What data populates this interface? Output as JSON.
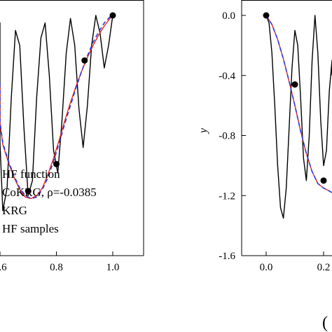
{
  "chart_data": [
    {
      "type": "line",
      "panel": "left",
      "xlabel": "",
      "ylabel": "",
      "xlim": [
        0.55,
        1.05
      ],
      "ylim": [
        -1.6,
        0.1
      ],
      "x_ticks": [
        0.6,
        0.8,
        1.0
      ],
      "x_tick_labels": [
        ".6",
        "0.8",
        "1.0"
      ],
      "grid": false,
      "legend_position": "bottom-left",
      "series": [
        {
          "name": "HF function",
          "style": "solid",
          "color": "#000000",
          "x": [
            0.55,
            0.565,
            0.58,
            0.595,
            0.61,
            0.625,
            0.64,
            0.655,
            0.67,
            0.685,
            0.7,
            0.715,
            0.73,
            0.745,
            0.76,
            0.775,
            0.79,
            0.805,
            0.82,
            0.835,
            0.85,
            0.865,
            0.88,
            0.895,
            0.91,
            0.925,
            0.94,
            0.955,
            0.97,
            0.985,
            1.0
          ],
          "y": [
            -0.45,
            -0.05,
            -0.25,
            -0.85,
            -1.3,
            -1.15,
            -0.55,
            -0.1,
            -0.2,
            -0.75,
            -1.2,
            -1.1,
            -0.55,
            -0.15,
            -0.05,
            -0.4,
            -0.9,
            -1.05,
            -0.7,
            -0.25,
            -0.02,
            -0.2,
            -0.62,
            -0.88,
            -0.6,
            -0.2,
            -0.0,
            -0.12,
            -0.35,
            -0.2,
            0.0
          ]
        },
        {
          "name": "CoKRG, ρ=-0.0385",
          "style": "solid",
          "color": "#e8251f",
          "x": [
            0.55,
            0.57,
            0.59,
            0.61,
            0.63,
            0.65,
            0.67,
            0.69,
            0.71,
            0.73,
            0.75,
            0.77,
            0.79,
            0.81,
            0.83,
            0.85,
            0.87,
            0.89,
            0.91,
            0.93,
            0.95,
            0.97,
            0.99,
            1.0
          ],
          "y": [
            -0.45,
            -0.58,
            -0.72,
            -0.86,
            -0.98,
            -1.08,
            -1.16,
            -1.21,
            -1.22,
            -1.2,
            -1.15,
            -1.06,
            -0.95,
            -0.83,
            -0.7,
            -0.58,
            -0.47,
            -0.37,
            -0.28,
            -0.2,
            -0.13,
            -0.07,
            -0.02,
            0.0
          ]
        },
        {
          "name": "KRG",
          "style": "dashed",
          "color": "#2f39d6",
          "x": [
            0.55,
            0.57,
            0.59,
            0.61,
            0.63,
            0.65,
            0.67,
            0.69,
            0.71,
            0.73,
            0.75,
            0.77,
            0.79,
            0.81,
            0.83,
            0.85,
            0.87,
            0.89,
            0.91,
            0.93,
            0.95,
            0.97,
            0.99,
            1.0
          ],
          "y": [
            -0.45,
            -0.57,
            -0.71,
            -0.85,
            -0.97,
            -1.07,
            -1.15,
            -1.2,
            -1.22,
            -1.21,
            -1.16,
            -1.08,
            -0.97,
            -0.85,
            -0.72,
            -0.6,
            -0.48,
            -0.37,
            -0.27,
            -0.18,
            -0.11,
            -0.05,
            -0.01,
            0.01
          ]
        },
        {
          "name": "HF samples",
          "style": "marker",
          "color": "#000000",
          "x": [
            0.55,
            0.7,
            0.8,
            0.9,
            1.0
          ],
          "y": [
            -0.45,
            -1.17,
            -0.99,
            -0.3,
            0.0
          ]
        }
      ]
    },
    {
      "type": "line",
      "panel": "right",
      "xlabel": "",
      "ylabel": "y",
      "xlim": [
        -0.1,
        0.27
      ],
      "ylim": [
        -1.6,
        0.1
      ],
      "y_ticks": [
        0.0,
        -0.4,
        -0.8,
        -1.2,
        -1.6
      ],
      "y_tick_labels": [
        "0.0",
        "-0.4",
        "-0.8",
        "-1.2",
        "-1.6"
      ],
      "x_ticks": [
        0.0,
        0.2
      ],
      "x_tick_labels": [
        "0.0",
        "0.2"
      ],
      "grid": false,
      "series": [
        {
          "name": "HF function",
          "style": "solid",
          "color": "#000000",
          "x": [
            0.0,
            0.01,
            0.02,
            0.03,
            0.04,
            0.05,
            0.06,
            0.07,
            0.08,
            0.09,
            0.1,
            0.11,
            0.12,
            0.13,
            0.14,
            0.15,
            0.16,
            0.17,
            0.18,
            0.19,
            0.2,
            0.21,
            0.22,
            0.23,
            0.24
          ],
          "y": [
            0.0,
            -0.05,
            -0.25,
            -0.6,
            -1.0,
            -1.28,
            -1.35,
            -1.15,
            -0.75,
            -0.35,
            -0.1,
            -0.2,
            -0.55,
            -0.95,
            -1.1,
            -0.8,
            -0.3,
            0.0,
            -0.25,
            -0.7,
            -1.0,
            -0.9,
            -0.5,
            -0.3,
            -0.4
          ]
        },
        {
          "name": "CoKRG",
          "style": "solid",
          "color": "#e8251f",
          "x": [
            0.0,
            0.02,
            0.04,
            0.06,
            0.08,
            0.1,
            0.12,
            0.14,
            0.16,
            0.18,
            0.2,
            0.22,
            0.24
          ],
          "y": [
            0.0,
            -0.06,
            -0.16,
            -0.29,
            -0.44,
            -0.6,
            -0.77,
            -0.92,
            -1.04,
            -1.12,
            -1.15,
            -1.17,
            -1.18
          ]
        },
        {
          "name": "KRG",
          "style": "dashed",
          "color": "#2f39d6",
          "x": [
            0.0,
            0.02,
            0.04,
            0.06,
            0.08,
            0.1,
            0.12,
            0.14,
            0.16,
            0.18,
            0.2,
            0.22,
            0.24
          ],
          "y": [
            0.0,
            -0.06,
            -0.16,
            -0.29,
            -0.44,
            -0.6,
            -0.77,
            -0.92,
            -1.04,
            -1.12,
            -1.15,
            -1.17,
            -1.18
          ]
        },
        {
          "name": "HF samples",
          "style": "marker",
          "color": "#000000",
          "x": [
            0.0,
            0.1,
            0.2
          ],
          "y": [
            0.0,
            -0.46,
            -1.1
          ]
        }
      ]
    }
  ],
  "legend": {
    "entries": [
      "HF function",
      "CoKRG, ρ=-0.0385",
      "KRG",
      "HF samples"
    ]
  },
  "panel_tag": "("
}
